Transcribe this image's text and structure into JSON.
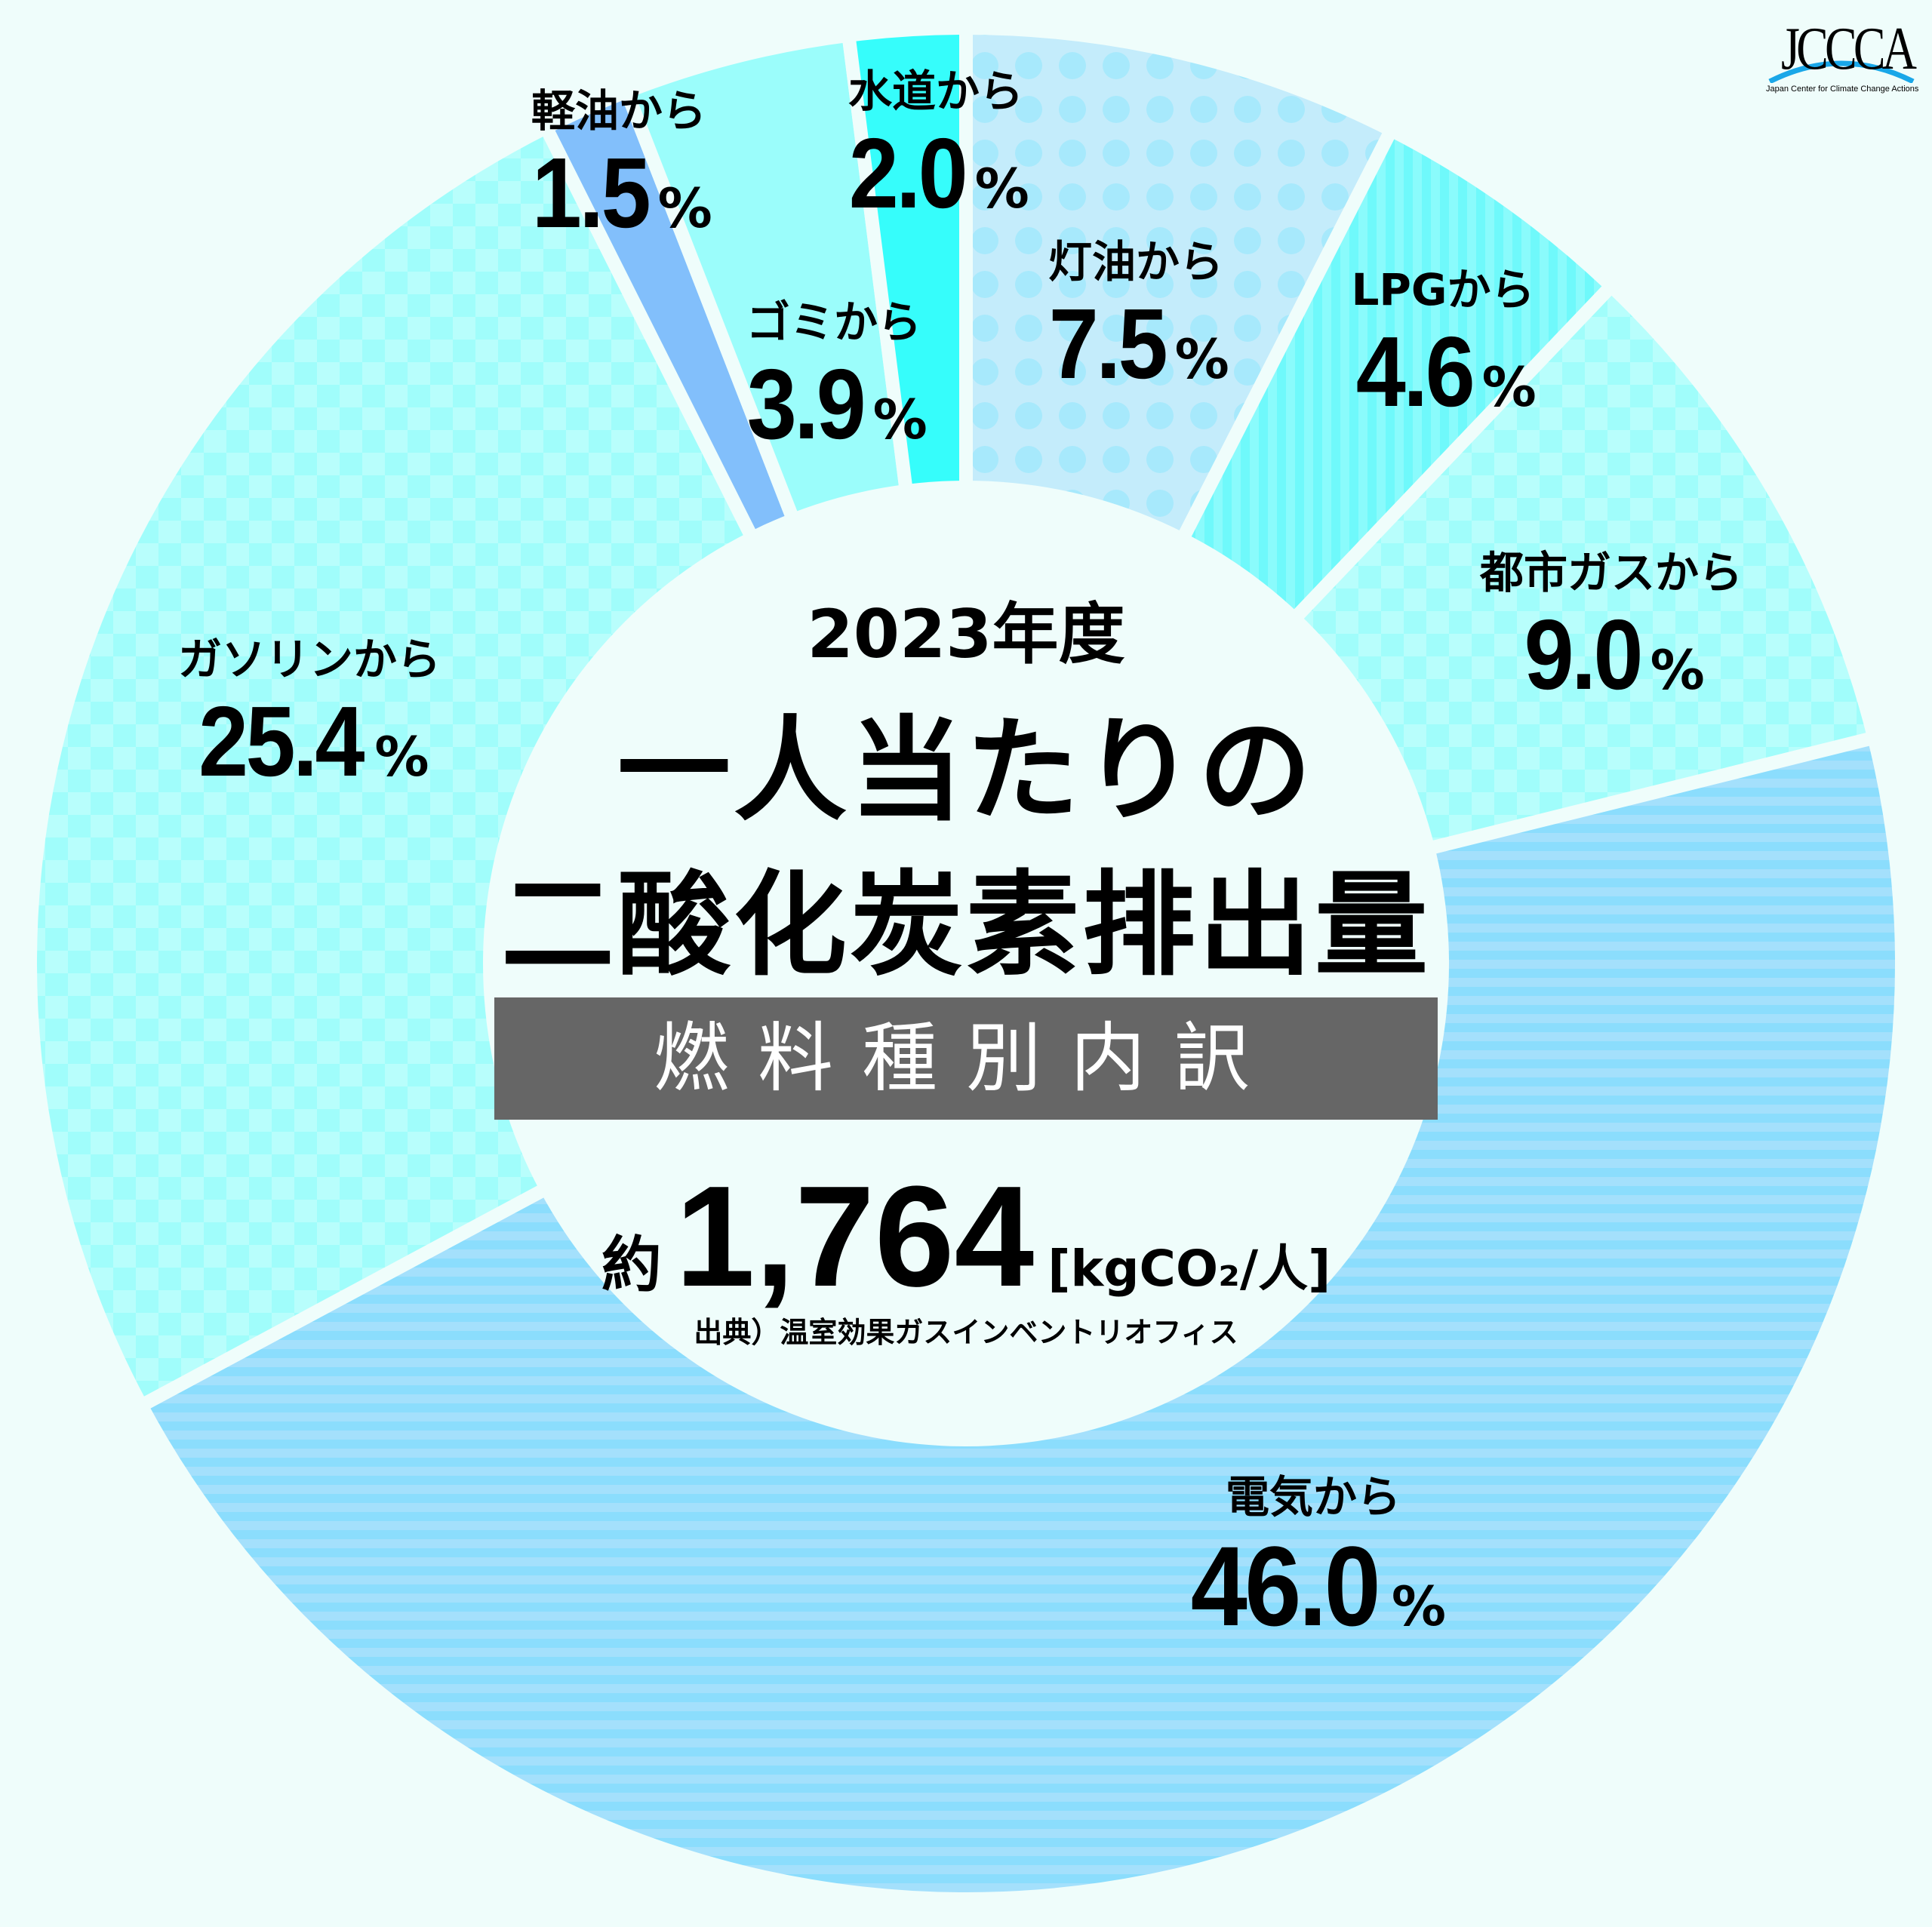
{
  "logo": {
    "mark": "JCCCA",
    "tagline": "Japan Center for Climate Change Actions",
    "arc_color": "#1aa7e8"
  },
  "center": {
    "year": "2023年度",
    "title_line1": "一人当たりの",
    "title_line2": "二酸化炭素排出量",
    "subtitle": "燃料種別内訳",
    "total_prefix": "約",
    "total_value": "1,764",
    "total_unit": "[kgCO₂/人]",
    "source": "出典）温室効果ガスインベントリオフィス"
  },
  "colors": {
    "background": "#effdfb",
    "band": "#666666"
  },
  "chart_data": {
    "type": "pie",
    "subtype": "donut",
    "title": "2023年度 一人当たりの二酸化炭素排出量 燃料種別内訳",
    "total": 1764,
    "total_unit": "kgCO2/人",
    "start_angle": "12 o'clock, clockwise",
    "categories": [
      "灯油から",
      "LPGから",
      "都市ガスから",
      "電気から",
      "ガソリンから",
      "軽油から",
      "ゴミから",
      "水道から"
    ],
    "values": [
      7.5,
      4.6,
      9.0,
      46.0,
      25.4,
      1.5,
      3.9,
      2.0
    ],
    "value_unit": "%",
    "slices": [
      {
        "name": "灯油から",
        "value": 7.5,
        "display": "7.5",
        "color": "#c4ecfb",
        "pattern": "dots",
        "pattern_color": "#a7e9fc"
      },
      {
        "name": "LPGから",
        "value": 4.6,
        "display": "4.6",
        "color": "#6ff9fb",
        "pattern": "vertical-stripes",
        "pattern_color": "#8afbfc"
      },
      {
        "name": "都市ガスから",
        "value": 9.0,
        "display": "9.0",
        "color": "#a3fdfb",
        "pattern": "checker",
        "pattern_color": "#b8fefc"
      },
      {
        "name": "電気から",
        "value": 46.0,
        "display": "46.0",
        "color": "#8bddfd",
        "pattern": "horizontal-stripes",
        "pattern_color": "#a4e0fc"
      },
      {
        "name": "ガソリンから",
        "value": 25.4,
        "display": "25.4",
        "color": "#a0fdfb",
        "pattern": "checker",
        "pattern_color": "#b6fefc"
      },
      {
        "name": "軽油から",
        "value": 1.5,
        "display": "1.5",
        "color": "#82bffb",
        "pattern": "solid",
        "pattern_color": "#82bffb"
      },
      {
        "name": "ゴミから",
        "value": 3.9,
        "display": "3.9",
        "color": "#9bfdfb",
        "pattern": "solid",
        "pattern_color": "#9bfdfb"
      },
      {
        "name": "水道から",
        "value": 2.0,
        "display": "2.0",
        "color": "#36fdfb",
        "pattern": "solid",
        "pattern_color": "#36fdfb"
      }
    ]
  },
  "labels": [
    {
      "name": "水道から",
      "pct": "2.0",
      "unit": "%"
    },
    {
      "name": "軽油から",
      "pct": "1.5",
      "unit": "%"
    },
    {
      "name": "ゴミから",
      "pct": "3.9",
      "unit": "%"
    },
    {
      "name": "灯油から",
      "pct": "7.5",
      "unit": "%"
    },
    {
      "name": "LPGから",
      "pct": "4.6",
      "unit": "%"
    },
    {
      "name": "都市ガスから",
      "pct": "9.0",
      "unit": "%"
    },
    {
      "name": "ガソリンから",
      "pct": "25.4",
      "unit": "%"
    },
    {
      "name": "電気から",
      "pct": "46.0",
      "unit": "%"
    }
  ]
}
